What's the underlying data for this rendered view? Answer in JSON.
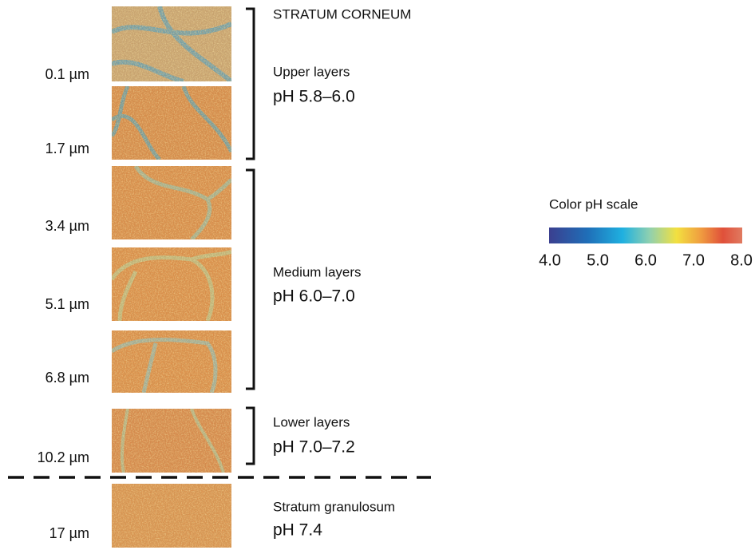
{
  "header": "STRATUM CORNEUM",
  "depths": [
    "0.1 µm",
    "1.7 µm",
    "3.4 µm",
    "5.1 µm",
    "6.8 µm",
    "10.2 µm",
    "17 µm"
  ],
  "sections": [
    {
      "label": "Upper layers",
      "ph": "pH 5.8–6.0"
    },
    {
      "label": "Medium layers",
      "ph": "pH 6.0–7.0"
    },
    {
      "label": "Lower layers",
      "ph": "pH 7.0–7.2"
    },
    {
      "label": "Stratum granulosum",
      "ph": "pH 7.4"
    }
  ],
  "scale": {
    "title": "Color pH scale",
    "ticks": [
      "4.0",
      "5.0",
      "6.0",
      "7.0",
      "8.0"
    ]
  }
}
